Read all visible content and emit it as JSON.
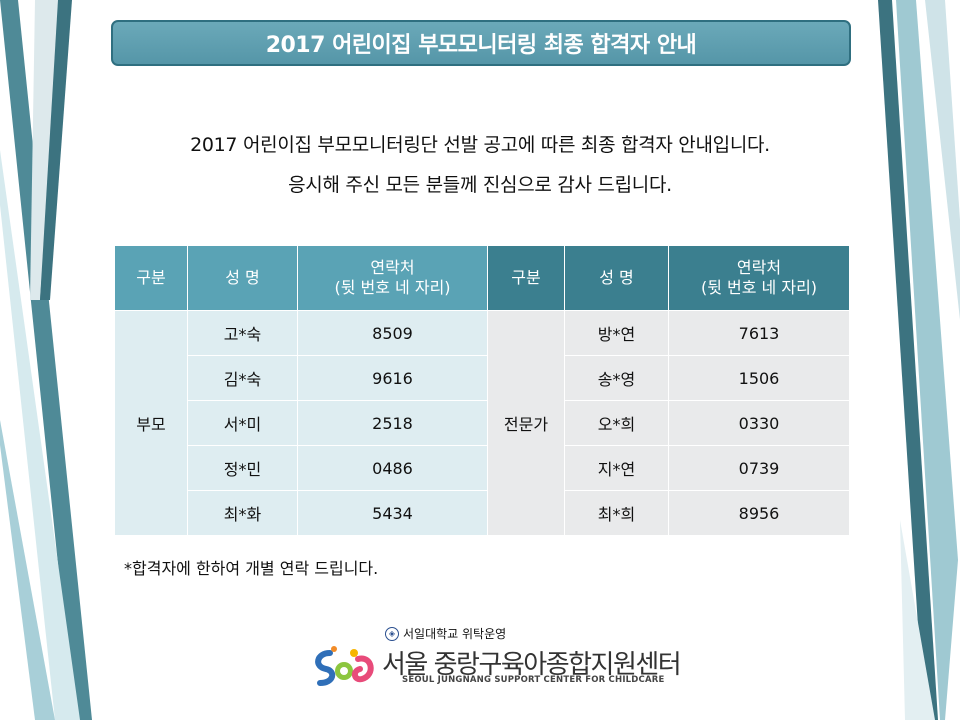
{
  "title": "2017 어린이집 부모모니터링 최종 합격자 안내",
  "intro": {
    "line1": "2017 어린이집 부모모니터링단 선발 공고에 따른 최종 합격자 안내입니다.",
    "line2": "응시해 주신 모든 분들께 진심으로 감사 드립니다."
  },
  "table": {
    "headers": {
      "category": "구분",
      "name": "성 명",
      "contact_line1": "연락처",
      "contact_line2": "(뒷 번호  네 자리)"
    },
    "groups": [
      {
        "category": "부모",
        "rows": [
          {
            "name": "고*숙",
            "contact": "8509"
          },
          {
            "name": "김*숙",
            "contact": "9616"
          },
          {
            "name": "서*미",
            "contact": "2518"
          },
          {
            "name": "정*민",
            "contact": "0486"
          },
          {
            "name": "최*화",
            "contact": "5434"
          }
        ]
      },
      {
        "category": "전문가",
        "rows": [
          {
            "name": "방*연",
            "contact": "7613"
          },
          {
            "name": "송*영",
            "contact": "1506"
          },
          {
            "name": "오*희",
            "contact": "0330"
          },
          {
            "name": "지*연",
            "contact": "0739"
          },
          {
            "name": "최*희",
            "contact": "8956"
          }
        ]
      }
    ]
  },
  "footnote": "*합격자에 한하여 개별 연락 드립니다.",
  "logo": {
    "operator": "서일대학교 위탁운영",
    "name": "서울 중랑구육아종합지원센터",
    "subtitle": "SEOUL JUNGNANG SUPPORT CENTER FOR CHILDCARE"
  },
  "colors": {
    "title_bar": "#5b9dae",
    "header_light": "#5aa3b5",
    "header_dark": "#3b7f8f",
    "cell_light": "#deedf1",
    "cell_grey": "#e9eaeb"
  }
}
